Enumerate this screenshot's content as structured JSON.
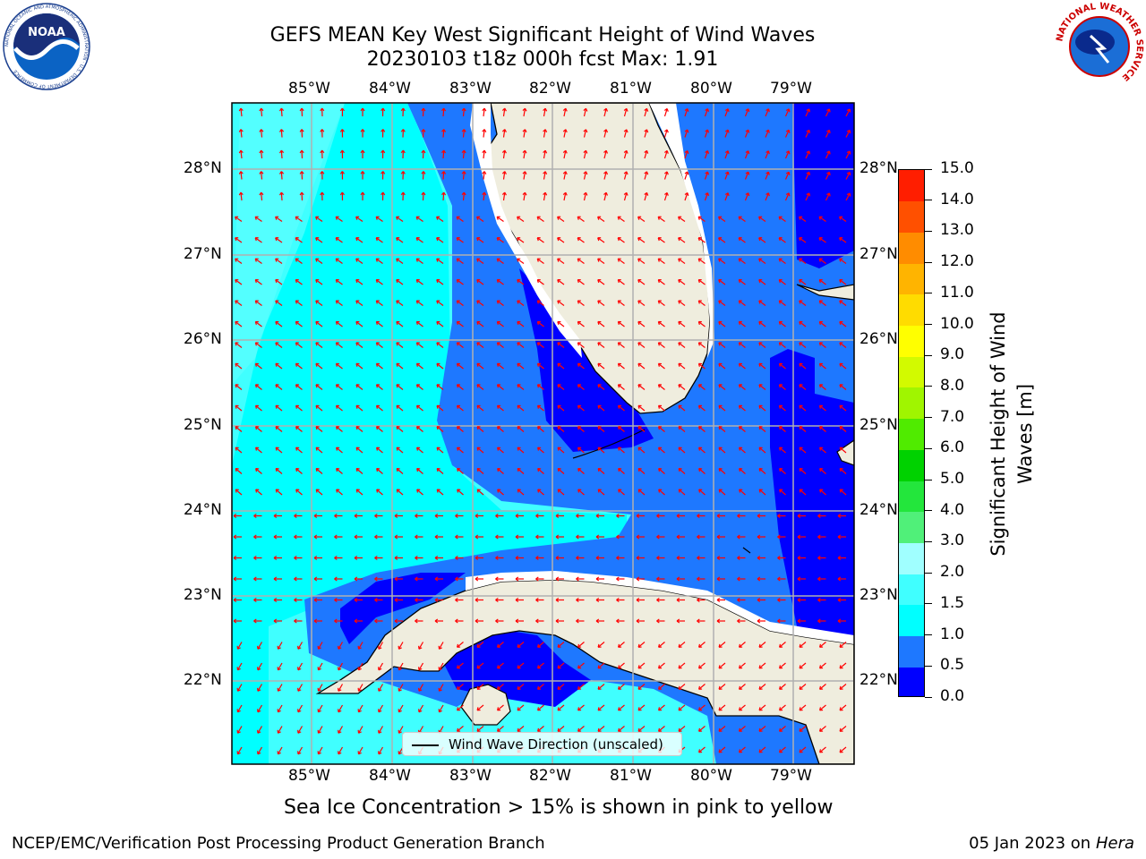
{
  "title": {
    "line1": "GEFS MEAN Key West Significant Height of Wind Waves",
    "line2": "20230103 t18z 000h fcst    Max: 1.91"
  },
  "logos": {
    "left_name": "NOAA",
    "left_ring_text": "NATIONAL OCEANIC AND ATMOSPHERIC ADMINISTRATION · U.S. DEPARTMENT OF COMMERCE",
    "right_ring_text": "NATIONAL WEATHER SERVICE"
  },
  "map": {
    "lon_labels": [
      "85°W",
      "84°W",
      "83°W",
      "82°W",
      "81°W",
      "80°W",
      "79°W"
    ],
    "lat_labels": [
      "28°N",
      "27°N",
      "26°N",
      "25°N",
      "24°N",
      "23°N",
      "22°N"
    ],
    "gridlines": true,
    "legend": "Wind Wave Direction (unscaled)",
    "colors": {
      "land": "#efedde",
      "coast": "#000000",
      "arrow": "#ff0000",
      "grid": "#b0b0b0"
    }
  },
  "colorbar": {
    "title_line1": "Significant Height of Wind",
    "title_line2": "Waves [m]",
    "ticks": [
      "0.0",
      "0.5",
      "1.0",
      "1.5",
      "2.0",
      "3.0",
      "4.0",
      "5.0",
      "6.0",
      "7.0",
      "8.0",
      "9.0",
      "10.0",
      "11.0",
      "12.0",
      "13.0",
      "14.0",
      "15.0"
    ],
    "colors": [
      "#0000ff",
      "#1e78ff",
      "#00ffff",
      "#40ffff",
      "#a0ffff",
      "#50f079",
      "#23e63c",
      "#00d200",
      "#50eb00",
      "#a0f500",
      "#d2fa00",
      "#ffff00",
      "#ffdc00",
      "#ffb400",
      "#ff8c00",
      "#ff5000",
      "#ff1e00"
    ]
  },
  "subtitle": "Sea Ice Concentration > 15% is shown in pink to yellow",
  "footer": {
    "left": "NCEP/EMC/Verification Post Processing Product Generation Branch",
    "right_date": "05 Jan 2023 on ",
    "right_host": "Hera"
  }
}
